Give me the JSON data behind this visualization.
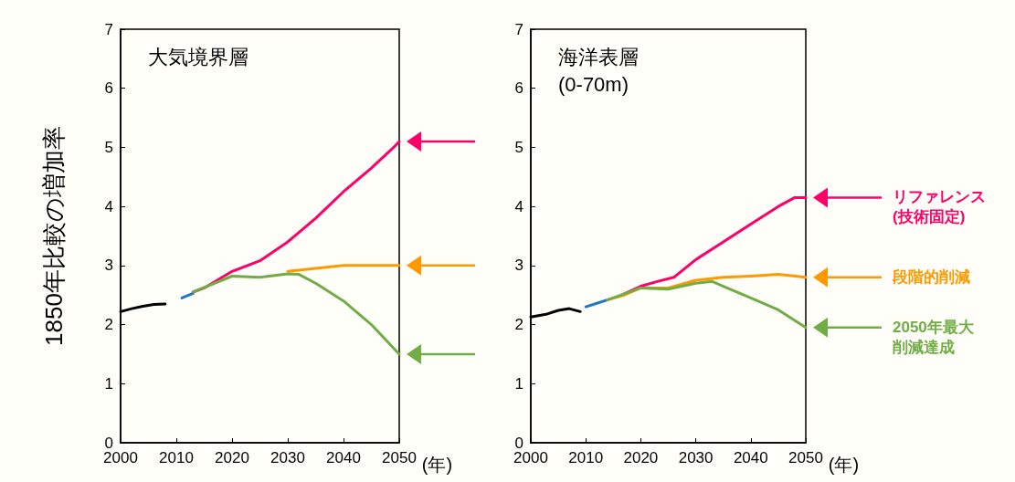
{
  "chart_data": [
    {
      "type": "line",
      "title": "大気境界層",
      "ylabel": "1850年比較の増加率",
      "xlabel": "(年)",
      "xlim": [
        2000,
        2050
      ],
      "xticks": [
        2000,
        2010,
        2020,
        2030,
        2040,
        2050
      ],
      "ylim": [
        0,
        7
      ],
      "yticks": [
        0,
        1,
        2,
        3,
        4,
        5,
        6,
        7
      ],
      "marker": "none",
      "line_style": "solid",
      "series": [
        {
          "color": "#000000",
          "x": [
            2000,
            2002,
            2004,
            2006,
            2008
          ],
          "values": [
            2.22,
            2.27,
            2.31,
            2.34,
            2.35
          ]
        },
        {
          "color": "#1f78c8",
          "x": [
            2011,
            2012,
            2013
          ],
          "values": [
            2.45,
            2.49,
            2.53
          ]
        },
        {
          "color": "#ff0066",
          "x": [
            2013,
            2015,
            2020,
            2025,
            2030,
            2035,
            2040,
            2045,
            2049,
            2050
          ],
          "values": [
            2.55,
            2.62,
            2.9,
            3.08,
            3.4,
            3.8,
            4.25,
            4.65,
            5.0,
            5.1
          ]
        },
        {
          "color": "#ff9900",
          "x": [
            2030,
            2035,
            2040,
            2045,
            2050
          ],
          "values": [
            2.9,
            2.95,
            3.0,
            3.0,
            3.0
          ]
        },
        {
          "color": "#70ad47",
          "x": [
            2013,
            2020,
            2025,
            2030,
            2032,
            2035,
            2040,
            2045,
            2050
          ],
          "values": [
            2.55,
            2.82,
            2.8,
            2.86,
            2.85,
            2.7,
            2.4,
            2.0,
            1.5
          ]
        }
      ]
    },
    {
      "type": "line",
      "title": "海洋表層\n(0-70m)",
      "legend": "right",
      "xlabel": "(年)",
      "xlim": [
        2000,
        2050
      ],
      "xticks": [
        2000,
        2010,
        2020,
        2030,
        2040,
        2050
      ],
      "ylim": [
        0,
        7
      ],
      "yticks": [
        0,
        1,
        2,
        3,
        4,
        5,
        6,
        7
      ],
      "marker": "none",
      "line_style": "solid",
      "series": [
        {
          "color": "#000000",
          "x": [
            2000,
            2003,
            2005,
            2007,
            2009
          ],
          "values": [
            2.13,
            2.18,
            2.24,
            2.27,
            2.22
          ]
        },
        {
          "color": "#1f78c8",
          "x": [
            2010,
            2012,
            2014
          ],
          "values": [
            2.3,
            2.36,
            2.42
          ]
        },
        {
          "name": "リファレンス(技術固定)",
          "color": "#ff0066",
          "x": [
            2017,
            2020,
            2023,
            2026,
            2030,
            2035,
            2040,
            2045,
            2048,
            2050
          ],
          "values": [
            2.52,
            2.65,
            2.73,
            2.8,
            3.1,
            3.4,
            3.7,
            4.0,
            4.15,
            4.15
          ]
        },
        {
          "name": "段階的削減",
          "color": "#ff9900",
          "x": [
            2014,
            2017,
            2020,
            2025,
            2030,
            2035,
            2040,
            2045,
            2050
          ],
          "values": [
            2.42,
            2.5,
            2.62,
            2.62,
            2.75,
            2.8,
            2.82,
            2.85,
            2.8
          ]
        },
        {
          "name": "2050年最大削減達成",
          "color": "#70ad47",
          "x": [
            2014,
            2020,
            2025,
            2030,
            2033,
            2035,
            2040,
            2045,
            2050
          ],
          "values": [
            2.42,
            2.62,
            2.6,
            2.7,
            2.73,
            2.65,
            2.45,
            2.25,
            1.95
          ]
        }
      ]
    }
  ]
}
